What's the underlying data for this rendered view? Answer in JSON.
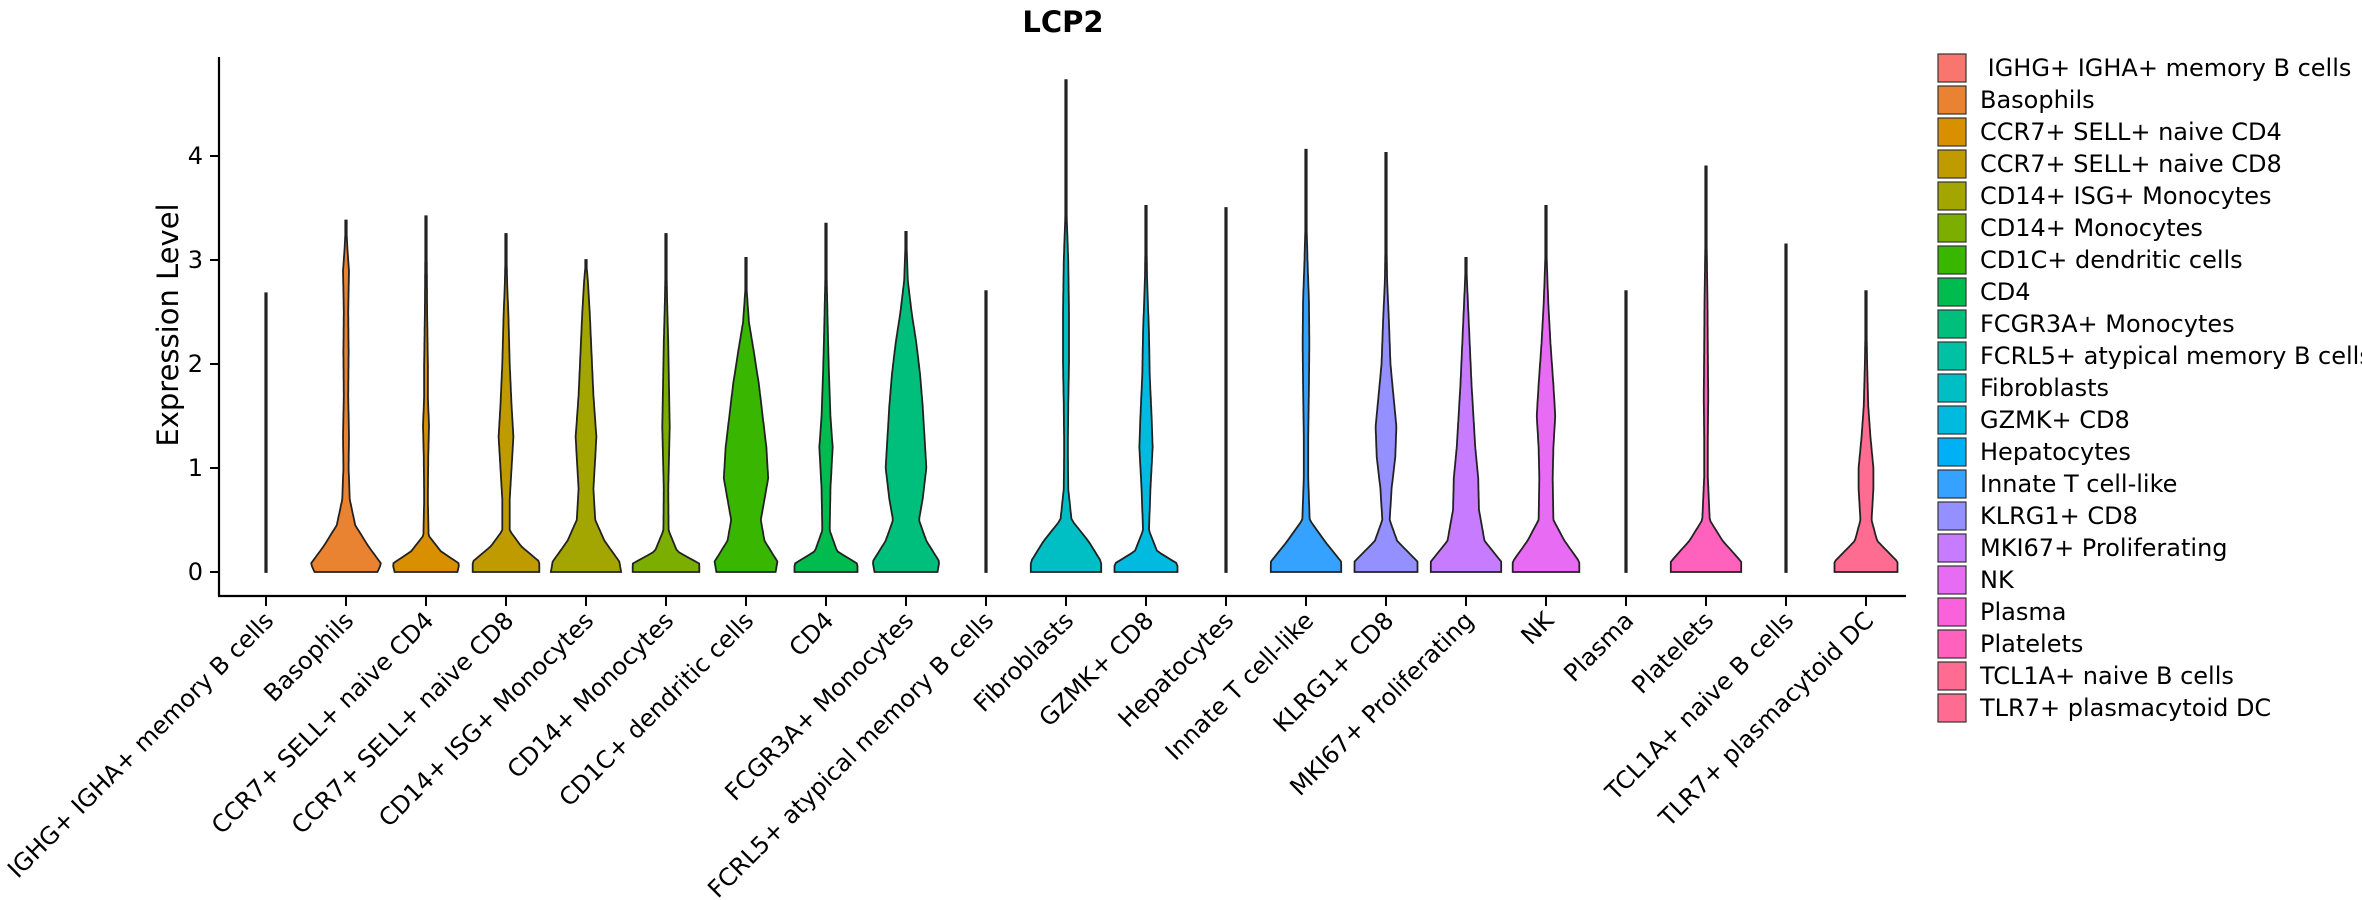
{
  "chart_data": {
    "type": "violin",
    "title": "LCP2",
    "xlabel": "",
    "ylabel": "Expression Level",
    "ylim": [
      -0.23,
      4.95
    ],
    "yticks": [
      "0",
      "1",
      "2",
      "3",
      "4"
    ],
    "categories": [
      "IGHG+ IGHA+ memory B cells",
      "Basophils",
      "CCR7+ SELL+ naive CD4",
      "CCR7+ SELL+ naive CD8",
      "CD14+ ISG+ Monocytes",
      "CD14+ Monocytes",
      "CD1C+ dendritic cells",
      "CD4",
      "FCGR3A+ Monocytes",
      "FCRL5+ atypical memory B cells",
      "Fibroblasts",
      "GZMK+ CD8",
      "Hepatocytes",
      "Innate T cell-like",
      "KLRG1+ CD8",
      "MKI67+ Proliferating",
      "NK",
      "Plasma",
      "Platelets",
      "TCL1A+ naive B cells",
      "TLR7+ plasmacytoid DC"
    ],
    "legend_labels": [
      " IGHG+ IGHA+ memory B cells",
      "Basophils",
      "CCR7+ SELL+ naive CD4",
      "CCR7+ SELL+ naive CD8",
      "CD14+ ISG+ Monocytes",
      "CD14+ Monocytes",
      "CD1C+ dendritic cells",
      "CD4",
      "FCGR3A+ Monocytes",
      "FCRL5+ atypical memory B cells",
      "Fibroblasts",
      "GZMK+ CD8",
      "Hepatocytes",
      "Innate T cell-like",
      "KLRG1+ CD8",
      "MKI67+ Proliferating",
      "NK",
      "Plasma",
      "Platelets",
      "TCL1A+ naive B cells",
      "TLR7+ plasmacytoid DC"
    ],
    "colors": [
      "#F8766D",
      "#EA8331",
      "#D89000",
      "#C09B00",
      "#A3A500",
      "#7CAE00",
      "#39B600",
      "#00BB4E",
      "#00BF7D",
      "#00C1A3",
      "#00BFC4",
      "#00BAE0",
      "#00B0F6",
      "#35A2FF",
      "#9590FF",
      "#C77CFF",
      "#E76BF3",
      "#FA62DB",
      "#FF62BC",
      "#FF6C91",
      "#FF6C91"
    ],
    "legend_placement": "right",
    "series": [
      {
        "name": "IGHG+ IGHA+ memory B cells",
        "max": 2.68,
        "profile": [
          [
            0,
            0.02
          ],
          [
            0.02,
            0.005
          ],
          [
            2.68,
            0.001
          ]
        ]
      },
      {
        "name": "Basophils",
        "max": 3.38,
        "profile": [
          [
            0,
            0.85
          ],
          [
            0.08,
            0.95
          ],
          [
            0.25,
            0.6
          ],
          [
            0.45,
            0.25
          ],
          [
            0.7,
            0.1
          ],
          [
            1.0,
            0.07
          ],
          [
            1.3,
            0.08
          ],
          [
            1.7,
            0.06
          ],
          [
            2.1,
            0.07
          ],
          [
            2.5,
            0.06
          ],
          [
            2.9,
            0.08
          ],
          [
            3.1,
            0.04
          ],
          [
            3.38,
            0
          ]
        ]
      },
      {
        "name": "CCR7+ SELL+ naive CD4",
        "max": 3.42,
        "profile": [
          [
            0,
            0.85
          ],
          [
            0.08,
            0.9
          ],
          [
            0.2,
            0.4
          ],
          [
            0.35,
            0.07
          ],
          [
            0.7,
            0.05
          ],
          [
            1.1,
            0.06
          ],
          [
            1.4,
            0.08
          ],
          [
            1.7,
            0.05
          ],
          [
            2.0,
            0.05
          ],
          [
            2.5,
            0.03
          ],
          [
            3.0,
            0.02
          ],
          [
            3.42,
            0
          ]
        ]
      },
      {
        "name": "CCR7+ SELL+ naive CD8",
        "max": 3.25,
        "profile": [
          [
            0,
            0.9
          ],
          [
            0.1,
            0.9
          ],
          [
            0.25,
            0.4
          ],
          [
            0.4,
            0.1
          ],
          [
            0.7,
            0.1
          ],
          [
            1.0,
            0.15
          ],
          [
            1.3,
            0.2
          ],
          [
            1.6,
            0.15
          ],
          [
            2.0,
            0.1
          ],
          [
            2.4,
            0.07
          ],
          [
            2.8,
            0.03
          ],
          [
            3.25,
            0
          ]
        ]
      },
      {
        "name": "CD14+ ISG+ Monocytes",
        "max": 3.0,
        "profile": [
          [
            0,
            0.95
          ],
          [
            0.1,
            0.9
          ],
          [
            0.3,
            0.5
          ],
          [
            0.5,
            0.25
          ],
          [
            0.8,
            0.2
          ],
          [
            1.1,
            0.25
          ],
          [
            1.3,
            0.28
          ],
          [
            1.7,
            0.2
          ],
          [
            2.1,
            0.15
          ],
          [
            2.5,
            0.1
          ],
          [
            2.8,
            0.05
          ],
          [
            3.0,
            0
          ]
        ]
      },
      {
        "name": "CD14+ Monocytes",
        "max": 3.25,
        "profile": [
          [
            0,
            0.9
          ],
          [
            0.08,
            0.9
          ],
          [
            0.2,
            0.3
          ],
          [
            0.4,
            0.07
          ],
          [
            0.8,
            0.06
          ],
          [
            1.1,
            0.08
          ],
          [
            1.4,
            0.1
          ],
          [
            1.8,
            0.08
          ],
          [
            2.2,
            0.06
          ],
          [
            2.6,
            0.03
          ],
          [
            3.0,
            0.01
          ],
          [
            3.25,
            0
          ]
        ]
      },
      {
        "name": "CD1C+ dendritic cells",
        "max": 3.02,
        "profile": [
          [
            0,
            0.8
          ],
          [
            0.1,
            0.85
          ],
          [
            0.3,
            0.5
          ],
          [
            0.5,
            0.4
          ],
          [
            0.7,
            0.5
          ],
          [
            0.9,
            0.6
          ],
          [
            1.2,
            0.55
          ],
          [
            1.5,
            0.45
          ],
          [
            1.8,
            0.35
          ],
          [
            2.1,
            0.22
          ],
          [
            2.4,
            0.08
          ],
          [
            2.7,
            0.02
          ],
          [
            3.02,
            0
          ]
        ]
      },
      {
        "name": "CD4",
        "max": 3.35,
        "profile": [
          [
            0,
            0.85
          ],
          [
            0.08,
            0.85
          ],
          [
            0.2,
            0.3
          ],
          [
            0.4,
            0.1
          ],
          [
            0.8,
            0.12
          ],
          [
            1.2,
            0.18
          ],
          [
            1.5,
            0.12
          ],
          [
            1.9,
            0.08
          ],
          [
            2.3,
            0.05
          ],
          [
            2.8,
            0.02
          ],
          [
            3.35,
            0
          ]
        ]
      },
      {
        "name": "FCGR3A+ Monocytes",
        "max": 3.27,
        "profile": [
          [
            0,
            0.85
          ],
          [
            0.1,
            0.9
          ],
          [
            0.3,
            0.55
          ],
          [
            0.5,
            0.35
          ],
          [
            0.7,
            0.45
          ],
          [
            1.0,
            0.55
          ],
          [
            1.3,
            0.5
          ],
          [
            1.6,
            0.45
          ],
          [
            1.9,
            0.38
          ],
          [
            2.2,
            0.28
          ],
          [
            2.5,
            0.15
          ],
          [
            2.8,
            0.05
          ],
          [
            3.27,
            0
          ]
        ]
      },
      {
        "name": "FCRL5+ atypical memory B cells",
        "max": 2.7,
        "profile": [
          [
            0,
            0.02
          ],
          [
            0.02,
            0.005
          ],
          [
            2.7,
            0.001
          ]
        ]
      },
      {
        "name": "Fibroblasts",
        "max": 4.73,
        "profile": [
          [
            0,
            0.95
          ],
          [
            0.1,
            0.95
          ],
          [
            0.3,
            0.6
          ],
          [
            0.5,
            0.15
          ],
          [
            0.8,
            0.06
          ],
          [
            1.2,
            0.05
          ],
          [
            1.6,
            0.06
          ],
          [
            2.0,
            0.08
          ],
          [
            2.5,
            0.08
          ],
          [
            3.0,
            0.06
          ],
          [
            3.4,
            0.02
          ],
          [
            4.0,
            0.01
          ],
          [
            4.73,
            0
          ]
        ]
      },
      {
        "name": "GZMK+ CD8",
        "max": 3.52,
        "profile": [
          [
            0,
            0.85
          ],
          [
            0.08,
            0.85
          ],
          [
            0.2,
            0.3
          ],
          [
            0.4,
            0.08
          ],
          [
            0.8,
            0.12
          ],
          [
            1.2,
            0.18
          ],
          [
            1.5,
            0.15
          ],
          [
            1.9,
            0.1
          ],
          [
            2.3,
            0.08
          ],
          [
            2.8,
            0.03
          ],
          [
            3.52,
            0
          ]
        ]
      },
      {
        "name": "Hepatocytes",
        "max": 3.5,
        "profile": [
          [
            0,
            0.02
          ],
          [
            0.02,
            0.005
          ],
          [
            3.5,
            0.001
          ]
        ]
      },
      {
        "name": "Innate T cell-like",
        "max": 4.06,
        "profile": [
          [
            0,
            0.95
          ],
          [
            0.1,
            0.95
          ],
          [
            0.3,
            0.5
          ],
          [
            0.5,
            0.1
          ],
          [
            0.9,
            0.06
          ],
          [
            1.3,
            0.06
          ],
          [
            1.8,
            0.08
          ],
          [
            2.2,
            0.09
          ],
          [
            2.6,
            0.08
          ],
          [
            3.0,
            0.04
          ],
          [
            3.4,
            0.01
          ],
          [
            4.06,
            0
          ]
        ]
      },
      {
        "name": "KLRG1+ CD8",
        "max": 4.03,
        "profile": [
          [
            0,
            0.85
          ],
          [
            0.1,
            0.85
          ],
          [
            0.3,
            0.3
          ],
          [
            0.5,
            0.1
          ],
          [
            0.8,
            0.15
          ],
          [
            1.1,
            0.25
          ],
          [
            1.4,
            0.28
          ],
          [
            1.7,
            0.2
          ],
          [
            2.0,
            0.12
          ],
          [
            2.4,
            0.08
          ],
          [
            2.8,
            0.03
          ],
          [
            3.3,
            0.01
          ],
          [
            4.03,
            0
          ]
        ]
      },
      {
        "name": "MKI67+ Proliferating",
        "max": 3.02,
        "profile": [
          [
            0,
            0.95
          ],
          [
            0.1,
            0.95
          ],
          [
            0.3,
            0.5
          ],
          [
            0.6,
            0.35
          ],
          [
            0.9,
            0.33
          ],
          [
            1.2,
            0.25
          ],
          [
            1.5,
            0.2
          ],
          [
            1.8,
            0.15
          ],
          [
            2.2,
            0.1
          ],
          [
            2.6,
            0.05
          ],
          [
            3.02,
            0
          ]
        ]
      },
      {
        "name": "NK",
        "max": 3.52,
        "profile": [
          [
            0,
            0.9
          ],
          [
            0.1,
            0.9
          ],
          [
            0.3,
            0.5
          ],
          [
            0.5,
            0.2
          ],
          [
            0.9,
            0.18
          ],
          [
            1.2,
            0.2
          ],
          [
            1.5,
            0.25
          ],
          [
            1.8,
            0.2
          ],
          [
            2.2,
            0.12
          ],
          [
            2.6,
            0.06
          ],
          [
            3.0,
            0.02
          ],
          [
            3.52,
            0
          ]
        ]
      },
      {
        "name": "Plasma",
        "max": 2.7,
        "profile": [
          [
            0,
            0.02
          ],
          [
            0.02,
            0.005
          ],
          [
            2.7,
            0.001
          ]
        ]
      },
      {
        "name": "Platelets",
        "max": 3.9,
        "profile": [
          [
            0,
            0.95
          ],
          [
            0.1,
            0.95
          ],
          [
            0.3,
            0.45
          ],
          [
            0.5,
            0.1
          ],
          [
            0.9,
            0.05
          ],
          [
            1.3,
            0.05
          ],
          [
            1.7,
            0.06
          ],
          [
            2.1,
            0.05
          ],
          [
            2.6,
            0.04
          ],
          [
            3.1,
            0.02
          ],
          [
            3.9,
            0
          ]
        ]
      },
      {
        "name": "TCL1A+ naive B cells",
        "max": 3.15,
        "profile": [
          [
            0,
            0.02
          ],
          [
            0.02,
            0.005
          ],
          [
            3.15,
            0.001
          ]
        ]
      },
      {
        "name": "TLR7+ plasmacytoid DC",
        "max": 2.7,
        "profile": [
          [
            0,
            0.85
          ],
          [
            0.1,
            0.85
          ],
          [
            0.3,
            0.3
          ],
          [
            0.5,
            0.15
          ],
          [
            0.8,
            0.2
          ],
          [
            1.0,
            0.2
          ],
          [
            1.3,
            0.12
          ],
          [
            1.6,
            0.06
          ],
          [
            2.0,
            0.03
          ],
          [
            2.7,
            0
          ]
        ]
      }
    ]
  }
}
